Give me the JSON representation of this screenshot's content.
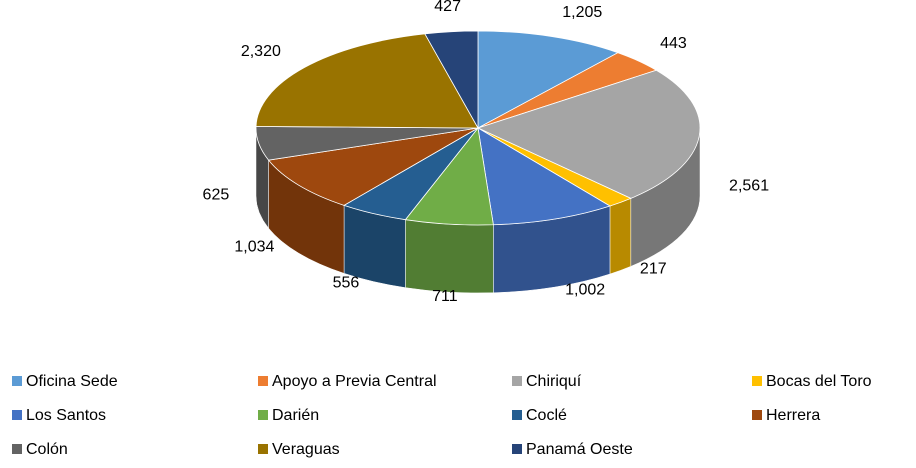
{
  "chart_data": {
    "type": "pie",
    "categories": [
      "Oficina Sede",
      "Apoyo a Previa Central",
      "Chiriquí",
      "Bocas del Toro",
      "Los Santos",
      "Darién",
      "Coclé",
      "Herrera",
      "Colón",
      "Veraguas",
      "Panamá Oeste"
    ],
    "values": [
      1205,
      443,
      2561,
      217,
      1002,
      711,
      556,
      1034,
      625,
      2320,
      427
    ],
    "value_labels": [
      "1,205",
      "443",
      "2,561",
      "217",
      "1,002",
      "711",
      "556",
      "1,034",
      "625",
      "2,320",
      "427"
    ],
    "colors": [
      "#5b9bd5",
      "#ed7d31",
      "#a5a5a5",
      "#ffc000",
      "#4472c4",
      "#70ad47",
      "#255e91",
      "#9e480e",
      "#636363",
      "#997300",
      "#264478"
    ],
    "legend": "bottom"
  }
}
